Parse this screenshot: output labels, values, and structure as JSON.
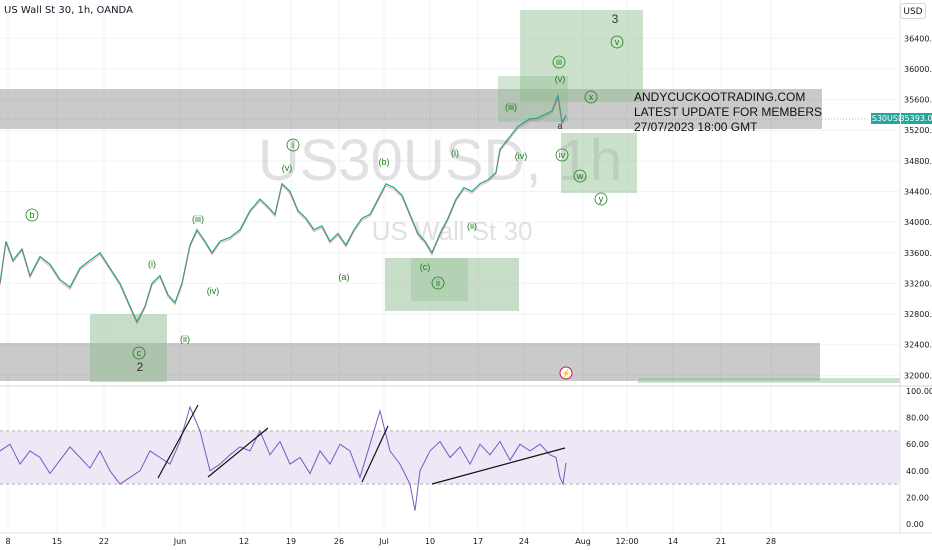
{
  "header": {
    "symbol_line": "US Wall St 30, 1h, OANDA",
    "currency_button": "USD"
  },
  "watermark": {
    "symbol": "US30USD, 1h",
    "name": "US Wall St 30"
  },
  "announcement": {
    "line1": "ANDYCUCKOOTRADING.COM",
    "line2": "LATEST UPDATE FOR MEMBERS",
    "line3": "27/07/2023 18:00 GMT"
  },
  "price_tag": {
    "symbol": "US30USD",
    "value": "35393.0",
    "color": "#26a69a"
  },
  "colors": {
    "candle_up": "#26a69a",
    "candle_down": "#ef5350",
    "wave_labels": "#1e7b1e",
    "target_box": "#8fbc8f",
    "zone_box": "#808080",
    "rsi_line": "#7e57c2",
    "rsi_band": "#ede7f6"
  },
  "wave_labels": [
    "b",
    "(i)",
    "(iii)",
    "(iv)",
    "c",
    "2",
    "(ii)",
    "i",
    "(v)",
    "(a)",
    "(b)",
    "(c)",
    "ii",
    "(i)",
    "(ii)",
    "(iii)",
    "(iv)",
    "iii",
    "(v)",
    "a",
    "iv",
    "3",
    "v",
    "x",
    "w",
    "y"
  ],
  "rsi_ticks": [
    "100.00",
    "80.00",
    "60.00",
    "40.00",
    "20.00",
    "0.00"
  ],
  "chart_data": {
    "type": "line",
    "title": "US Wall St 30, 1h, OANDA",
    "x_tick_labels": [
      "8",
      "15",
      "22",
      "Jun",
      "12",
      "19",
      "26",
      "Jul",
      "10",
      "17",
      "24",
      "Aug",
      "12:00",
      "14",
      "21",
      "28"
    ],
    "y_tick_labels": [
      "36400.0",
      "36000.0",
      "35600.0",
      "35200.0",
      "34800.0",
      "34400.0",
      "34000.0",
      "33600.0",
      "33200.0",
      "32800.0",
      "32400.0",
      "32000.0"
    ],
    "ylim": [
      31900,
      36900
    ],
    "series": [
      {
        "points": [
          [
            0,
            33200
          ],
          [
            6,
            33750
          ],
          [
            13,
            33500
          ],
          [
            22,
            33650
          ],
          [
            30,
            33300
          ],
          [
            40,
            33550
          ],
          [
            50,
            33450
          ],
          [
            60,
            33250
          ],
          [
            70,
            33150
          ],
          [
            80,
            33400
          ],
          [
            90,
            33500
          ],
          [
            100,
            33600
          ],
          [
            110,
            33400
          ],
          [
            120,
            33200
          ],
          [
            130,
            32900
          ],
          [
            137,
            32700
          ],
          [
            145,
            32900
          ],
          [
            152,
            33200
          ],
          [
            160,
            33300
          ],
          [
            168,
            33050
          ],
          [
            175,
            32950
          ],
          [
            182,
            33200
          ],
          [
            190,
            33700
          ],
          [
            197,
            33900
          ],
          [
            205,
            33750
          ],
          [
            212,
            33600
          ],
          [
            220,
            33750
          ],
          [
            230,
            33800
          ],
          [
            240,
            33900
          ],
          [
            250,
            34150
          ],
          [
            260,
            34300
          ],
          [
            268,
            34200
          ],
          [
            275,
            34100
          ],
          [
            282,
            34500
          ],
          [
            290,
            34400
          ],
          [
            298,
            34150
          ],
          [
            306,
            34050
          ],
          [
            314,
            33900
          ],
          [
            322,
            33950
          ],
          [
            330,
            33750
          ],
          [
            338,
            33850
          ],
          [
            346,
            33700
          ],
          [
            354,
            33900
          ],
          [
            362,
            34050
          ],
          [
            370,
            34100
          ],
          [
            378,
            34300
          ],
          [
            386,
            34500
          ],
          [
            394,
            34450
          ],
          [
            402,
            34350
          ],
          [
            410,
            34100
          ],
          [
            418,
            33850
          ],
          [
            425,
            33750
          ],
          [
            432,
            33600
          ],
          [
            440,
            33850
          ],
          [
            448,
            34050
          ],
          [
            456,
            34300
          ],
          [
            464,
            34450
          ],
          [
            472,
            34400
          ],
          [
            480,
            34500
          ],
          [
            488,
            34550
          ],
          [
            496,
            34650
          ],
          [
            500,
            34950
          ],
          [
            506,
            35050
          ],
          [
            512,
            35150
          ],
          [
            518,
            35250
          ],
          [
            524,
            35300
          ],
          [
            530,
            35350
          ],
          [
            536,
            35350
          ],
          [
            544,
            35400
          ],
          [
            552,
            35450
          ],
          [
            558,
            35650
          ],
          [
            562,
            35300
          ],
          [
            566,
            35393
          ]
        ]
      }
    ],
    "rsi": {
      "ylim": [
        0,
        100
      ],
      "band": [
        30,
        70
      ],
      "points": [
        [
          0,
          55
        ],
        [
          10,
          60
        ],
        [
          20,
          45
        ],
        [
          30,
          55
        ],
        [
          40,
          50
        ],
        [
          50,
          38
        ],
        [
          60,
          48
        ],
        [
          70,
          58
        ],
        [
          80,
          50
        ],
        [
          90,
          42
        ],
        [
          100,
          55
        ],
        [
          110,
          40
        ],
        [
          120,
          30
        ],
        [
          130,
          35
        ],
        [
          140,
          40
        ],
        [
          150,
          55
        ],
        [
          160,
          50
        ],
        [
          170,
          45
        ],
        [
          180,
          62
        ],
        [
          190,
          88
        ],
        [
          200,
          70
        ],
        [
          210,
          40
        ],
        [
          220,
          45
        ],
        [
          230,
          52
        ],
        [
          240,
          58
        ],
        [
          250,
          55
        ],
        [
          260,
          70
        ],
        [
          270,
          52
        ],
        [
          280,
          62
        ],
        [
          290,
          45
        ],
        [
          300,
          50
        ],
        [
          310,
          38
        ],
        [
          320,
          55
        ],
        [
          330,
          45
        ],
        [
          340,
          60
        ],
        [
          350,
          55
        ],
        [
          360,
          35
        ],
        [
          370,
          60
        ],
        [
          380,
          85
        ],
        [
          390,
          55
        ],
        [
          400,
          45
        ],
        [
          410,
          30
        ],
        [
          415,
          10
        ],
        [
          420,
          40
        ],
        [
          430,
          55
        ],
        [
          440,
          62
        ],
        [
          450,
          50
        ],
        [
          460,
          58
        ],
        [
          470,
          45
        ],
        [
          480,
          60
        ],
        [
          490,
          52
        ],
        [
          500,
          62
        ],
        [
          510,
          48
        ],
        [
          520,
          60
        ],
        [
          530,
          55
        ],
        [
          540,
          60
        ],
        [
          550,
          52
        ],
        [
          556,
          50
        ],
        [
          560,
          35
        ],
        [
          563,
          30
        ],
        [
          566,
          46
        ]
      ]
    }
  }
}
